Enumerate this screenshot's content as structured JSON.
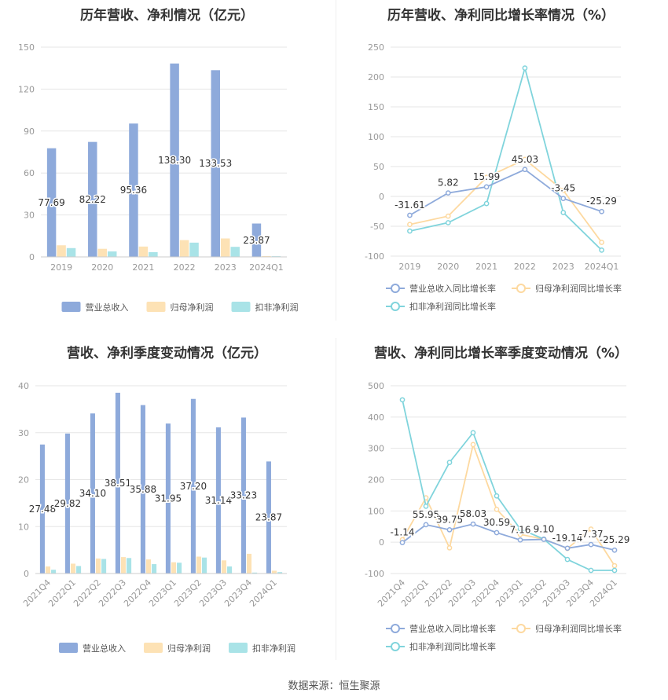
{
  "footer": "数据来源：恒生聚源",
  "colors": {
    "revenue": "#8eaadb",
    "net_profit": "#fde2b5",
    "deducted_profit": "#a9e3e7",
    "line_revenue": "#8eaadb",
    "line_net": "#fdd9a0",
    "line_deducted": "#80d4dc",
    "grid": "#e6e6e6",
    "axis_text": "#999999"
  },
  "chart_data": [
    {
      "type": "bar",
      "title": "历年营收、净利情况（亿元）",
      "categories": [
        "2019",
        "2020",
        "2021",
        "2022",
        "2023",
        "2024Q1"
      ],
      "ylim": [
        0,
        150
      ],
      "yticks": [
        0,
        30,
        60,
        90,
        120,
        150
      ],
      "series": [
        {
          "name": "营业总收入",
          "values": [
            77.69,
            82.22,
            95.36,
            138.3,
            133.53,
            23.87
          ],
          "labels": [
            "77.69",
            "82.22",
            "95.36",
            "138.30",
            "133.53",
            "23.87"
          ]
        },
        {
          "name": "归母净利润",
          "values": [
            8.3,
            5.8,
            7.4,
            12.0,
            13.2,
            0.6
          ]
        },
        {
          "name": "扣非净利润",
          "values": [
            6.3,
            3.9,
            3.4,
            10.2,
            7.2,
            0.5
          ]
        }
      ],
      "legend_position": "bottom"
    },
    {
      "type": "line",
      "title": "历年营收、净利同比增长率情况（%）",
      "categories": [
        "2019",
        "2020",
        "2021",
        "2022",
        "2023",
        "2024Q1"
      ],
      "ylim": [
        -100,
        250
      ],
      "yticks": [
        -100,
        -50,
        0,
        50,
        100,
        150,
        200,
        250
      ],
      "series": [
        {
          "name": "营业总收入同比增长率",
          "values": [
            -31.61,
            5.82,
            15.99,
            45.03,
            -3.45,
            -25.29
          ],
          "labels": [
            "-31.61",
            "5.82",
            "15.99",
            "45.03",
            "-3.45",
            "-25.29"
          ]
        },
        {
          "name": "归母净利润同比增长率",
          "values": [
            -47,
            -33,
            32,
            62,
            10,
            -77
          ]
        },
        {
          "name": "扣非净利润同比增长率",
          "values": [
            -58,
            -44,
            -12,
            215,
            -27,
            -90
          ]
        }
      ],
      "legend_position": "bottom"
    },
    {
      "type": "bar",
      "title": "营收、净利季度变动情况（亿元）",
      "categories": [
        "2021Q4",
        "2022Q1",
        "2022Q2",
        "2022Q3",
        "2022Q4",
        "2023Q1",
        "2023Q2",
        "2023Q3",
        "2023Q4",
        "2024Q1"
      ],
      "ylim": [
        0,
        40
      ],
      "yticks": [
        0,
        10,
        20,
        30,
        40
      ],
      "series": [
        {
          "name": "营业总收入",
          "values": [
            27.48,
            29.82,
            34.1,
            38.51,
            35.88,
            31.95,
            37.2,
            31.14,
            33.23,
            23.87
          ],
          "labels": [
            "27.48",
            "29.82",
            "34.10",
            "38.51",
            "35.88",
            "31.95",
            "37.20",
            "31.14",
            "33.23",
            "23.87"
          ]
        },
        {
          "name": "归母净利润",
          "values": [
            1.5,
            2.1,
            3.2,
            3.5,
            3.0,
            2.4,
            3.6,
            2.8,
            4.2,
            0.6
          ]
        },
        {
          "name": "扣非净利润",
          "values": [
            0.8,
            1.6,
            3.1,
            3.3,
            2.0,
            2.3,
            3.4,
            1.5,
            0.2,
            0.3
          ]
        }
      ],
      "legend_position": "bottom"
    },
    {
      "type": "line",
      "title": "营收、净利同比增长率季度变动情况（%）",
      "categories": [
        "2021Q4",
        "2022Q1",
        "2022Q2",
        "2022Q3",
        "2022Q4",
        "2023Q1",
        "2023Q2",
        "2023Q3",
        "2023Q4",
        "2024Q1"
      ],
      "ylim": [
        -100,
        500
      ],
      "yticks": [
        -100,
        0,
        100,
        200,
        300,
        400,
        500
      ],
      "series": [
        {
          "name": "营业总收入同比增长率",
          "values": [
            -1.14,
            55.95,
            39.75,
            58.03,
            30.59,
            7.16,
            9.1,
            -19.14,
            -7.37,
            -25.29
          ],
          "labels": [
            "-1.14",
            "55.95",
            "39.75",
            "58.03",
            "30.59",
            "7.16",
            "9.10",
            "-19.14",
            "-7.37",
            "-25.29"
          ]
        },
        {
          "name": "归母净利润同比增长率",
          "values": [
            8,
            142,
            -18,
            312,
            105,
            25,
            10,
            -20,
            42,
            -75
          ]
        },
        {
          "name": "扣非净利润同比增长率",
          "values": [
            455,
            115,
            255,
            350,
            148,
            42,
            10,
            -55,
            -90,
            -90
          ]
        }
      ],
      "legend_position": "bottom"
    }
  ]
}
